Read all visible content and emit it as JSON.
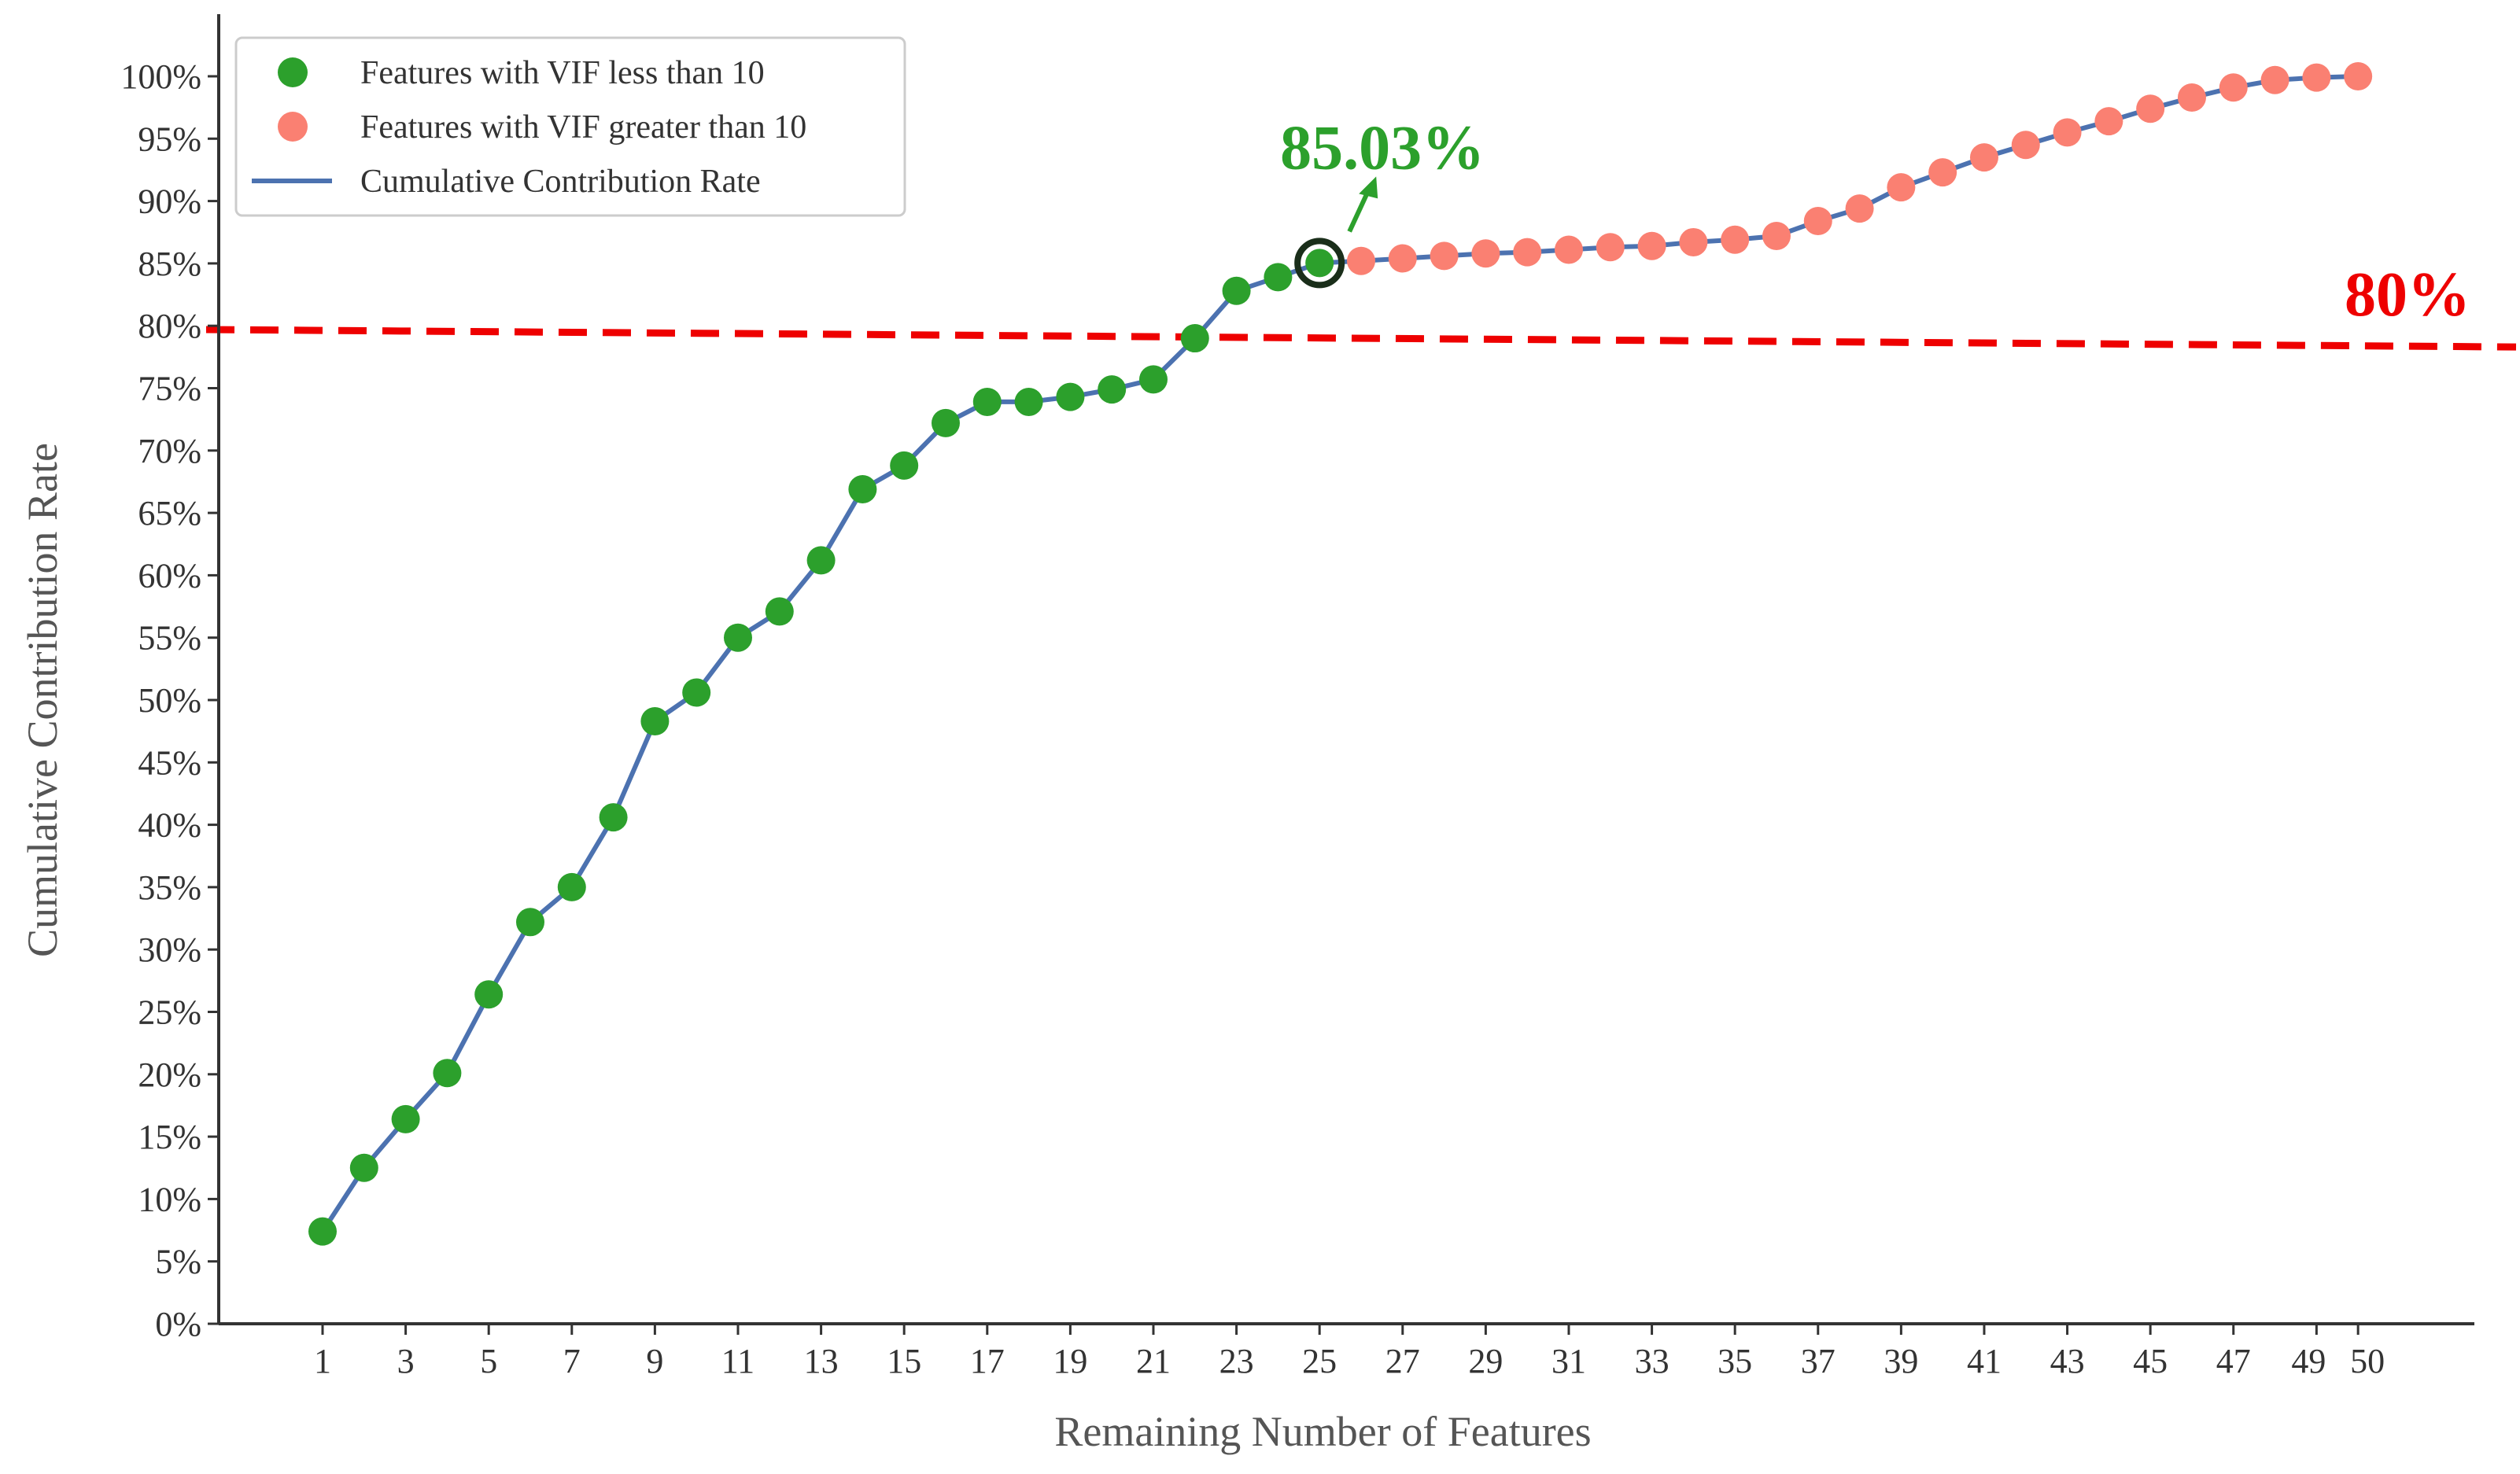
{
  "colors": {
    "low_vif": "#2ca02c",
    "high_vif": "#fa8072",
    "line": "#4c72b0",
    "threshold": "#ee0000",
    "axis": "#333333",
    "highlight_ring": "#1a2e1a"
  },
  "chart_data": {
    "type": "line",
    "xlabel": "Remaining Number of Features",
    "ylabel": "Cumulative Contribution Rate",
    "xlim": [
      -1.5,
      52.8
    ],
    "ylim": [
      0,
      100
    ],
    "x_ticks": [
      1,
      3,
      5,
      7,
      9,
      11,
      13,
      15,
      17,
      19,
      21,
      23,
      25,
      27,
      29,
      31,
      33,
      35,
      37,
      39,
      41,
      43,
      45,
      47,
      49,
      50
    ],
    "y_ticks": [
      0,
      5,
      10,
      15,
      20,
      25,
      30,
      35,
      40,
      45,
      50,
      55,
      60,
      65,
      70,
      75,
      80,
      85,
      90,
      95,
      100
    ],
    "y_tick_suffix": "%",
    "grid": false,
    "legend_position": "top-left",
    "legend": [
      {
        "label": "Features with VIF less than 10",
        "kind": "marker",
        "color": "#2ca02c"
      },
      {
        "label": "Features with VIF greater than 10",
        "kind": "marker",
        "color": "#fa8072"
      },
      {
        "label": "Cumulative Contribution Rate",
        "kind": "line",
        "color": "#4c72b0"
      }
    ],
    "x": [
      1,
      2,
      3,
      4,
      5,
      6,
      7,
      8,
      9,
      10,
      11,
      12,
      13,
      14,
      15,
      16,
      17,
      18,
      19,
      20,
      21,
      22,
      23,
      24,
      25,
      26,
      27,
      28,
      29,
      30,
      31,
      32,
      33,
      34,
      35,
      36,
      37,
      38,
      39,
      40,
      41,
      42,
      43,
      44,
      45,
      46,
      47,
      48,
      49,
      50
    ],
    "series": [
      {
        "name": "Features with VIF less than 10",
        "x": [
          1,
          2,
          3,
          4,
          5,
          6,
          7,
          8,
          9,
          10,
          11,
          12,
          13,
          14,
          15,
          16,
          17,
          18,
          19,
          20,
          21,
          22,
          23,
          24,
          25
        ],
        "values": [
          7.4,
          12.5,
          16.4,
          20.1,
          26.4,
          32.2,
          35.0,
          40.6,
          48.3,
          50.6,
          55.0,
          57.1,
          61.2,
          66.9,
          68.8,
          72.2,
          73.9,
          73.9,
          74.3,
          74.9,
          75.7,
          79.0,
          82.8,
          83.9,
          85.03
        ]
      },
      {
        "name": "Features with VIF greater than 10",
        "x": [
          26,
          27,
          28,
          29,
          30,
          31,
          32,
          33,
          34,
          35,
          36,
          37,
          38,
          39,
          40,
          41,
          42,
          43,
          44,
          45,
          46,
          47,
          48,
          49,
          50
        ],
        "values": [
          85.2,
          85.4,
          85.6,
          85.8,
          85.9,
          86.1,
          86.3,
          86.4,
          86.7,
          86.9,
          87.2,
          88.4,
          89.4,
          91.1,
          92.3,
          93.5,
          94.5,
          95.5,
          96.4,
          97.4,
          98.3,
          99.1,
          99.7,
          99.9,
          100.0
        ]
      }
    ],
    "cumulative_line": {
      "name": "Cumulative Contribution Rate",
      "values": [
        7.4,
        12.5,
        16.4,
        20.1,
        26.4,
        32.2,
        35.0,
        40.6,
        48.3,
        50.6,
        55.0,
        57.1,
        61.2,
        66.9,
        68.8,
        72.2,
        73.9,
        73.9,
        74.3,
        74.9,
        75.7,
        79.0,
        82.8,
        83.9,
        85.03,
        85.2,
        85.4,
        85.6,
        85.8,
        85.9,
        86.1,
        86.3,
        86.4,
        86.7,
        86.9,
        87.2,
        88.4,
        89.4,
        91.1,
        92.3,
        93.5,
        94.5,
        95.5,
        96.4,
        97.4,
        98.3,
        99.1,
        99.7,
        99.9,
        100.0
      ]
    },
    "threshold": {
      "value": 80,
      "label": "80%",
      "y_start": 79.7,
      "y_end": 78.3
    },
    "highlight": {
      "x": 25,
      "y": 85.03,
      "label": "85.03%"
    }
  }
}
